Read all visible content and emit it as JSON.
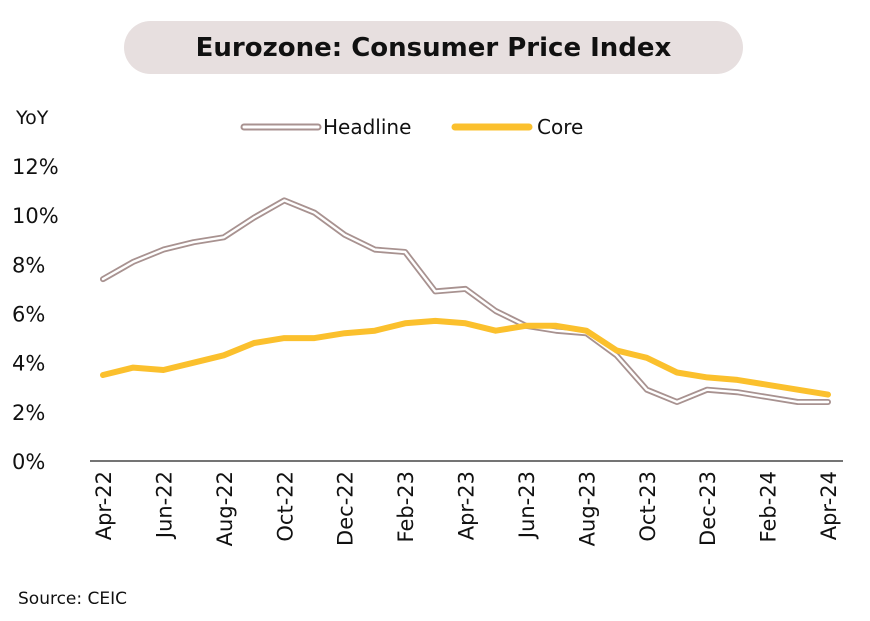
{
  "chart_data": {
    "type": "line",
    "title": "Eurozone: Consumer Price Index",
    "ylabel": "YoY",
    "xlabel": "",
    "ylim": [
      0,
      12
    ],
    "ytick_labels": [
      "0%",
      "2%",
      "4%",
      "6%",
      "8%",
      "10%",
      "12%"
    ],
    "ytick_values": [
      0,
      2,
      4,
      6,
      8,
      10,
      12
    ],
    "x": [
      "Apr-22",
      "May-22",
      "Jun-22",
      "Jul-22",
      "Aug-22",
      "Sep-22",
      "Oct-22",
      "Nov-22",
      "Dec-22",
      "Jan-23",
      "Feb-23",
      "Mar-23",
      "Apr-23",
      "May-23",
      "Jun-23",
      "Jul-23",
      "Aug-23",
      "Sep-23",
      "Oct-23",
      "Nov-23",
      "Dec-23",
      "Jan-24",
      "Feb-24",
      "Mar-24",
      "Apr-24"
    ],
    "xtick_labels": [
      "Apr-22",
      "Jun-22",
      "Aug-22",
      "Oct-22",
      "Dec-22",
      "Feb-23",
      "Apr-23",
      "Jun-23",
      "Aug-23",
      "Oct-23",
      "Dec-23",
      "Feb-24",
      "Apr-24"
    ],
    "legend_position": "top",
    "grid": false,
    "series": [
      {
        "name": "Headline",
        "color": "#a89290",
        "style": "hollow",
        "values": [
          7.4,
          8.1,
          8.6,
          8.9,
          9.1,
          9.9,
          10.6,
          10.1,
          9.2,
          8.6,
          8.5,
          6.9,
          7.0,
          6.1,
          5.5,
          5.3,
          5.2,
          4.3,
          2.9,
          2.4,
          2.9,
          2.8,
          2.6,
          2.4,
          2.4
        ]
      },
      {
        "name": "Core",
        "color": "#fbc02d",
        "style": "solid",
        "values": [
          3.5,
          3.8,
          3.7,
          4.0,
          4.3,
          4.8,
          5.0,
          5.0,
          5.2,
          5.3,
          5.6,
          5.7,
          5.6,
          5.3,
          5.5,
          5.5,
          5.3,
          4.5,
          4.2,
          3.6,
          3.4,
          3.3,
          3.1,
          2.9,
          2.7
        ]
      }
    ]
  },
  "source": "Source: CEIC"
}
